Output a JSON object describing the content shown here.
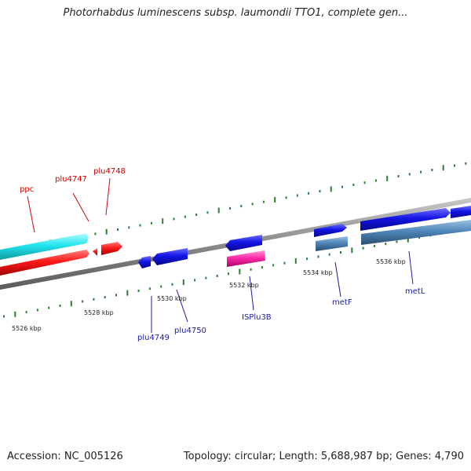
{
  "title": "Photorhabdus luminescens subsp. laumondii TTO1, complete gen...",
  "footer": {
    "accession": "Accession: NC_005126",
    "summary": "Topology: circular; Length: 5,688,987 bp; Genes: 4,790"
  },
  "colors": {
    "backbone": "#8a8a8a",
    "tick": "#2e7d32",
    "cds_cyan": "#22e6ef",
    "cds_red": "#ff1a1a",
    "cds_blue": "#1414e6",
    "cds_steel": "#4f86b8",
    "cds_magenta": "#ff2aa8",
    "label_red": "#d40000",
    "label_blue": "#1a1aa6"
  },
  "genes": [
    {
      "name": "ppc",
      "strand": "plus",
      "color": "cds_cyan",
      "label_color": "label_red"
    },
    {
      "name": "plu4747",
      "strand": "plus",
      "color": "cds_red",
      "label_color": "label_red"
    },
    {
      "name": "plu4748",
      "strand": "minus",
      "color": "cds_red",
      "label_color": "label_red"
    },
    {
      "name": "plu4749",
      "strand": "minus",
      "color": "cds_blue",
      "label_color": "label_blue"
    },
    {
      "name": "plu4750",
      "strand": "minus",
      "color": "cds_blue",
      "label_color": "label_blue"
    },
    {
      "name": "ISPlu3B",
      "strand": "minus",
      "color": "cds_magenta",
      "label_color": "label_blue"
    },
    {
      "name": "metF",
      "strand": "plus",
      "color": "cds_blue",
      "label_color": "label_blue"
    },
    {
      "name": "metL",
      "strand": "plus",
      "color": "cds_blue",
      "label_color": "label_blue"
    }
  ],
  "scale_labels": [
    "5526 kbp",
    "5528 kbp",
    "5530 kbp",
    "5532 kbp",
    "5534 kbp",
    "5536 kbp"
  ]
}
